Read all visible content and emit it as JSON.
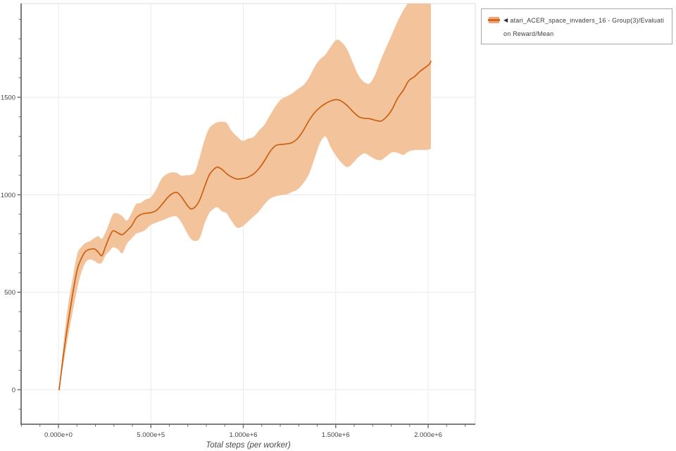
{
  "legend": {
    "collapse_icon": "◀",
    "label": "atari_ACER_space_invaders_16 - Group(3)/Evaluation Reward/Mean",
    "swatch_band_color": "#f2a678",
    "swatch_line_color": "#d2691e"
  },
  "colors": {
    "line": "#cc5f10",
    "band": "#f3c39c",
    "grid": "#eaeaea",
    "outer_border": "#e3e3e3",
    "spine": "#6b6b6b",
    "tick": "#6b6b6b",
    "tick_label": "#454545",
    "axis_title": "#4a4a4a"
  },
  "chart_data": {
    "type": "line",
    "title": "",
    "xlabel": "Total steps (per worker)",
    "ylabel": "",
    "grid": true,
    "legend_position": "top-right",
    "xlim": [
      -201900,
      2255200
    ],
    "ylim": [
      -177,
      1981
    ],
    "x_ticks": [
      {
        "value": 0,
        "label": "0.000e+0"
      },
      {
        "value": 500000,
        "label": "5.000e+5"
      },
      {
        "value": 1000000,
        "label": "1.000e+6"
      },
      {
        "value": 1500000,
        "label": "1.500e+6"
      },
      {
        "value": 2000000,
        "label": "2.000e+6"
      }
    ],
    "y_ticks": [
      {
        "value": 0,
        "label": "0"
      },
      {
        "value": 500,
        "label": "500"
      },
      {
        "value": 1000,
        "label": "1000"
      },
      {
        "value": 1500,
        "label": "1500"
      }
    ],
    "x_minor_step": 100000,
    "y_minor_step": 100,
    "series": [
      {
        "name": "atari_ACER_space_invaders_16 - Group(3)/Evaluation Reward/Mean",
        "x": [
          4000,
          25000,
          50000,
          75000,
          100000,
          120000,
          145000,
          170000,
          195000,
          215000,
          235000,
          255000,
          275000,
          295000,
          320000,
          345000,
          370000,
          395000,
          420000,
          445000,
          470000,
          500000,
          530000,
          560000,
          590000,
          615000,
          640000,
          665000,
          690000,
          715000,
          740000,
          765000,
          790000,
          815000,
          840000,
          860000,
          885000,
          910000,
          935000,
          965000,
          995000,
          1025000,
          1055000,
          1085000,
          1115000,
          1145000,
          1175000,
          1205000,
          1235000,
          1265000,
          1295000,
          1325000,
          1355000,
          1385000,
          1415000,
          1445000,
          1475000,
          1505000,
          1535000,
          1565000,
          1595000,
          1625000,
          1655000,
          1685000,
          1715000,
          1745000,
          1775000,
          1805000,
          1835000,
          1865000,
          1895000,
          1925000,
          1955000,
          1980000,
          2005000,
          2015000
        ],
        "mean": [
          0,
          165,
          330,
          480,
          610,
          665,
          708,
          720,
          722,
          706,
          688,
          735,
          782,
          815,
          805,
          795,
          815,
          840,
          880,
          898,
          905,
          908,
          920,
          950,
          985,
          1005,
          1012,
          990,
          955,
          928,
          938,
          975,
          1040,
          1100,
          1130,
          1142,
          1130,
          1108,
          1092,
          1081,
          1083,
          1090,
          1106,
          1135,
          1175,
          1222,
          1252,
          1258,
          1261,
          1268,
          1290,
          1330,
          1380,
          1420,
          1448,
          1468,
          1482,
          1488,
          1478,
          1455,
          1425,
          1400,
          1392,
          1390,
          1382,
          1378,
          1400,
          1438,
          1495,
          1535,
          1585,
          1605,
          1632,
          1650,
          1668,
          1685
        ],
        "lower": [
          0,
          120,
          260,
          390,
          510,
          590,
          650,
          668,
          660,
          648,
          652,
          690,
          710,
          730,
          722,
          700,
          748,
          775,
          800,
          808,
          820,
          845,
          858,
          868,
          880,
          888,
          888,
          858,
          815,
          775,
          763,
          778,
          852,
          905,
          928,
          936,
          915,
          905,
          868,
          832,
          838,
          862,
          888,
          915,
          952,
          980,
          992,
          998,
          1002,
          1015,
          1028,
          1060,
          1105,
          1185,
          1265,
          1298,
          1240,
          1195,
          1160,
          1142,
          1165,
          1195,
          1212,
          1198,
          1182,
          1178,
          1198,
          1218,
          1215,
          1205,
          1222,
          1229,
          1230,
          1230,
          1232,
          1238
        ],
        "upper": [
          0,
          215,
          420,
          560,
          690,
          728,
          752,
          762,
          778,
          788,
          775,
          808,
          855,
          900,
          905,
          890,
          868,
          905,
          952,
          958,
          975,
          988,
          1030,
          1085,
          1108,
          1115,
          1112,
          1098,
          1100,
          1102,
          1120,
          1196,
          1280,
          1340,
          1362,
          1372,
          1375,
          1368,
          1330,
          1300,
          1277,
          1288,
          1296,
          1330,
          1360,
          1410,
          1455,
          1490,
          1505,
          1520,
          1542,
          1562,
          1600,
          1655,
          1695,
          1720,
          1762,
          1795,
          1780,
          1740,
          1672,
          1610,
          1578,
          1572,
          1620,
          1695,
          1760,
          1825,
          1890,
          1945,
          1990,
          2040,
          2080,
          2110,
          2135,
          2150
        ]
      }
    ]
  }
}
